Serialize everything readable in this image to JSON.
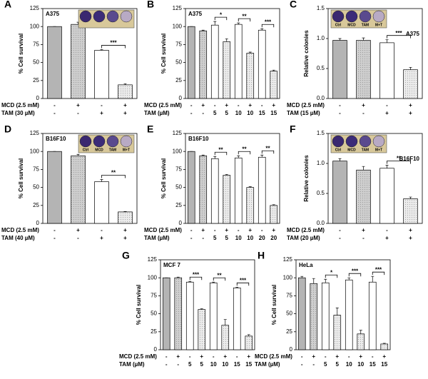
{
  "chart_data": [
    {
      "type": "bar",
      "panel": "A",
      "title": "A375",
      "title_position": "left",
      "inset": true,
      "y_label": "% Cell survival",
      "ylim": [
        0,
        125
      ],
      "yticks": [
        0,
        25,
        50,
        75,
        100,
        125
      ],
      "values": [
        100,
        103,
        67,
        19
      ],
      "errors": [
        0,
        3,
        1,
        1.5
      ],
      "colors": [
        "#b4b4b4",
        "#cfcfcf",
        "#ffffff",
        "#ececec"
      ],
      "row_labels": [
        "MCD (2.5 mM)",
        "TAM (30 µM)"
      ],
      "rows": [
        [
          "-",
          "+",
          "-",
          "+"
        ],
        [
          "-",
          "-",
          "+",
          "+"
        ]
      ],
      "significance": [
        "***"
      ]
    },
    {
      "type": "bar",
      "panel": "B",
      "title": "A375",
      "title_position": "left",
      "y_label": "% Cell survival",
      "ylim": [
        0,
        125
      ],
      "yticks": [
        0,
        25,
        50,
        75,
        100,
        125
      ],
      "values": [
        100,
        94,
        102,
        79,
        103,
        63,
        95,
        38
      ],
      "errors": [
        0,
        1,
        5,
        4,
        2,
        1.5,
        2,
        1.5
      ],
      "colors": [
        "#b4b4b4",
        "#cfcfcf",
        "#ffffff",
        "#ececec",
        "#ffffff",
        "#ececec",
        "#ffffff",
        "#ececec"
      ],
      "row_labels": [
        "MCD (2.5 mM)",
        "TAM (µM)"
      ],
      "rows": [
        [
          "-",
          "+",
          "-",
          "+",
          "-",
          "+",
          "-",
          "+"
        ],
        [
          "-",
          "-",
          "5",
          "5",
          "10",
          "10",
          "15",
          "15"
        ]
      ],
      "significance": [
        "*",
        "**",
        "***"
      ]
    },
    {
      "type": "bar",
      "panel": "C",
      "title": "A375",
      "title_position": "right",
      "inset": true,
      "inset_labels": [
        "Ctrl",
        "MCD",
        "TAM",
        "M+T"
      ],
      "y_label": "Relative colonies",
      "ylim": [
        0,
        1.5
      ],
      "yticks": [
        {
          "value": 0,
          "label": "0.0"
        },
        0.5,
        {
          "value": 1,
          "label": "1.0"
        },
        1.5
      ],
      "values": [
        0.97,
        0.97,
        0.93,
        0.48
      ],
      "errors": [
        0.03,
        0.04,
        0.05,
        0.04
      ],
      "colors": [
        "#b4b4b4",
        "#cfcfcf",
        "#ffffff",
        "#ececec"
      ],
      "row_labels": [
        "MCD (2.5 mM)",
        "TAM (15 µM)"
      ],
      "rows": [
        [
          "-",
          "+",
          "-",
          "+"
        ],
        [
          "-",
          "-",
          "+",
          "+"
        ]
      ],
      "significance": [
        "***"
      ]
    },
    {
      "type": "bar",
      "panel": "D",
      "title": "B16F10",
      "title_position": "left",
      "inset": true,
      "inset_labels": [
        "Ctrl",
        "MCD",
        "TAM",
        "M+T"
      ],
      "y_label": "% Cell survival",
      "ylim": [
        0,
        125
      ],
      "yticks": [
        0,
        25,
        50,
        75,
        100,
        125
      ],
      "values": [
        100,
        94,
        58,
        16
      ],
      "errors": [
        0,
        2,
        3,
        0.5
      ],
      "colors": [
        "#b4b4b4",
        "#cfcfcf",
        "#ffffff",
        "#ececec"
      ],
      "row_labels": [
        "MCD (2.5 mM)",
        "TAM (40 µM)"
      ],
      "rows": [
        [
          "-",
          "+",
          "-",
          "+"
        ],
        [
          "-",
          "-",
          "+",
          "+"
        ]
      ],
      "significance": [
        "**"
      ]
    },
    {
      "type": "bar",
      "panel": "E",
      "title": "B16F10",
      "title_position": "left",
      "y_label": "% Cell survival",
      "ylim": [
        0,
        125
      ],
      "yticks": [
        0,
        25,
        50,
        75,
        100,
        125
      ],
      "values": [
        100,
        94,
        90,
        67,
        91,
        50,
        92,
        25
      ],
      "errors": [
        0,
        1,
        3,
        1,
        3,
        1,
        3,
        1
      ],
      "colors": [
        "#b4b4b4",
        "#cfcfcf",
        "#ffffff",
        "#ececec",
        "#ffffff",
        "#ececec",
        "#ffffff",
        "#ececec"
      ],
      "row_labels": [
        "MCD (2.5 mM)",
        "TAM (µM)"
      ],
      "rows": [
        [
          "-",
          "+",
          "-",
          "+",
          "-",
          "+",
          "-",
          "+"
        ],
        [
          "-",
          "-",
          "5",
          "5",
          "10",
          "10",
          "20",
          "20"
        ]
      ],
      "significance": [
        "**",
        "**",
        "**"
      ]
    },
    {
      "type": "bar",
      "panel": "F",
      "title": "B16F10",
      "title_position": "right",
      "inset": true,
      "inset_labels": [
        "Ctrl",
        "MCD",
        "TAM",
        "M+T"
      ],
      "y_label": "Relative colonies",
      "ylim": [
        0,
        1.5
      ],
      "yticks": [
        {
          "value": 0,
          "label": "0.0"
        },
        0.5,
        {
          "value": 1,
          "label": "1.0"
        },
        1.5
      ],
      "values": [
        1.04,
        0.89,
        0.92,
        0.41
      ],
      "errors": [
        0.04,
        0.06,
        0.05,
        0.03
      ],
      "colors": [
        "#b4b4b4",
        "#cfcfcf",
        "#ffffff",
        "#ececec"
      ],
      "row_labels": [
        "MCD (2.5 mM)",
        "TAM (20 µM)"
      ],
      "rows": [
        [
          "-",
          "+",
          "-",
          "+"
        ],
        [
          "-",
          "-",
          "+",
          "+"
        ]
      ],
      "significance": [
        "**"
      ]
    },
    {
      "type": "bar",
      "panel": "G",
      "title": "MCF 7",
      "title_position": "left",
      "y_label": "% Cell survival",
      "ylim": [
        0,
        125
      ],
      "yticks": [
        0,
        25,
        50,
        75,
        100,
        125
      ],
      "values": [
        100,
        100,
        94,
        56,
        93,
        34,
        86,
        19
      ],
      "errors": [
        0,
        1,
        1,
        1,
        1,
        8,
        1,
        2
      ],
      "colors": [
        "#b4b4b4",
        "#cfcfcf",
        "#ffffff",
        "#ececec",
        "#ffffff",
        "#ececec",
        "#ffffff",
        "#ececec"
      ],
      "row_labels": [
        "MCD (2.5 mM)",
        "TAM (µM)"
      ],
      "rows": [
        [
          "-",
          "+",
          "-",
          "+",
          "-",
          "+",
          "-",
          "+"
        ],
        [
          "-",
          "-",
          "5",
          "5",
          "10",
          "10",
          "15",
          "15"
        ]
      ],
      "significance": [
        "***",
        "**",
        "***"
      ]
    },
    {
      "type": "bar",
      "panel": "H",
      "title": "HeLa",
      "title_position": "left",
      "y_label": "% Cell survival",
      "ylim": [
        0,
        125
      ],
      "yticks": [
        0,
        25,
        50,
        75,
        100,
        125
      ],
      "values": [
        100,
        92,
        93,
        48,
        97,
        22,
        94,
        8
      ],
      "errors": [
        2,
        7,
        5,
        10,
        3,
        5,
        8,
        1
      ],
      "colors": [
        "#b4b4b4",
        "#cfcfcf",
        "#ffffff",
        "#ececec",
        "#ffffff",
        "#ececec",
        "#ffffff",
        "#ececec"
      ],
      "row_labels": [
        "MCD (2.5 mM)",
        "TAM (µM)"
      ],
      "rows": [
        [
          "-",
          "+",
          "-",
          "+",
          "-",
          "+",
          "-",
          "+"
        ],
        [
          "-",
          "-",
          "5",
          "5",
          "10",
          "10",
          "15",
          "15"
        ]
      ],
      "significance": [
        "*",
        "***",
        "***"
      ]
    }
  ]
}
